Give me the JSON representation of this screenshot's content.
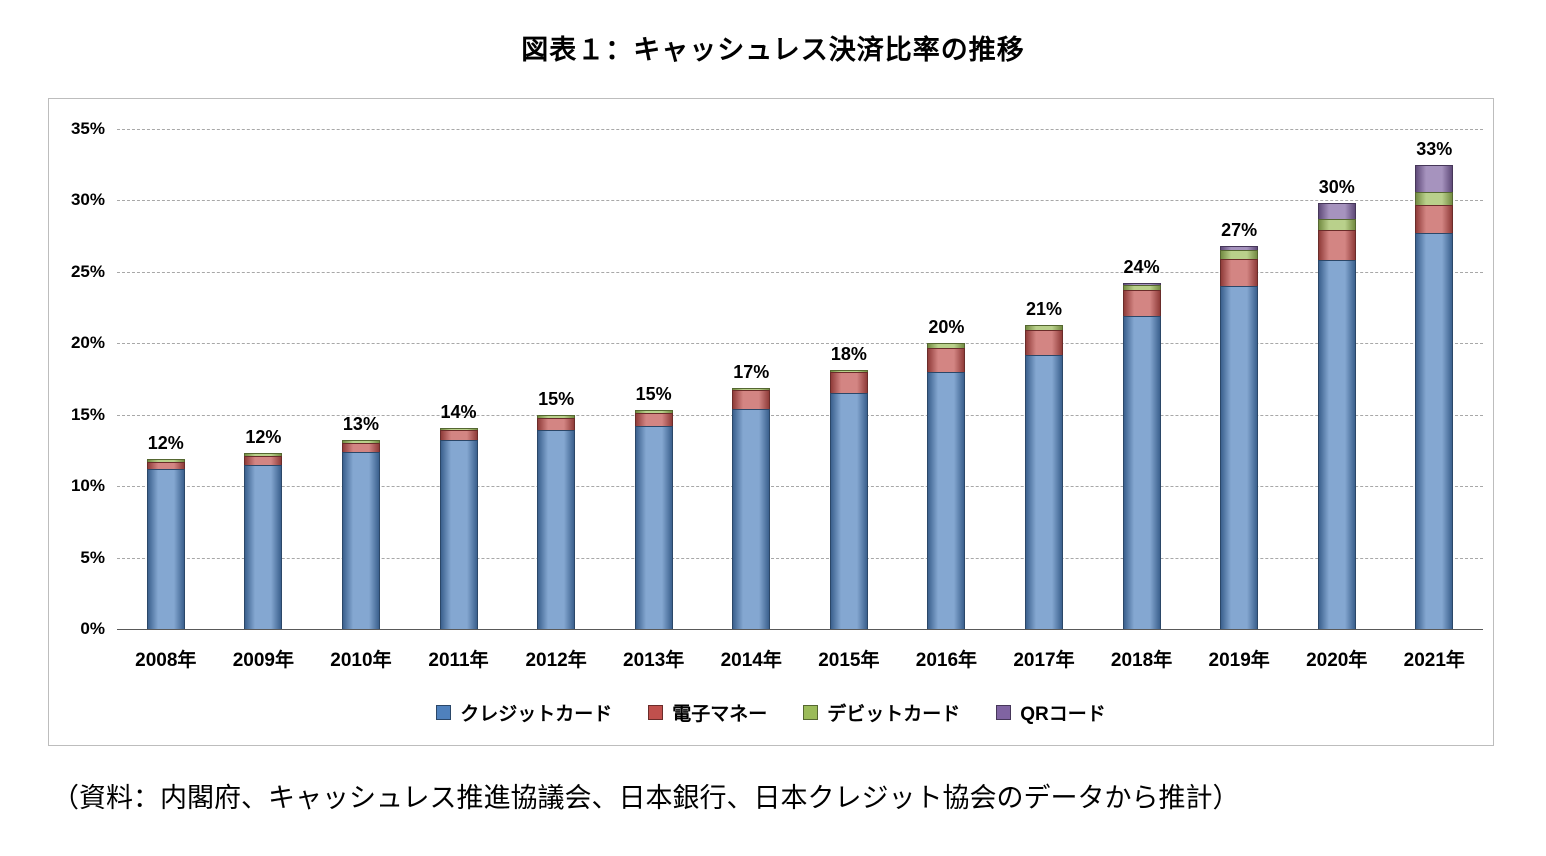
{
  "title": "図表１：キャッシュレス決済比率の推移",
  "caption": "（資料：内閣府、キャッシュレス推進協議会、日本銀行、日本クレジット協会のデータから推計）",
  "chart_data": {
    "type": "bar",
    "stacked": true,
    "title": "図表１：キャッシュレス決済比率の推移",
    "categories": [
      "2008年",
      "2009年",
      "2010年",
      "2011年",
      "2012年",
      "2013年",
      "2014年",
      "2015年",
      "2016年",
      "2017年",
      "2018年",
      "2019年",
      "2020年",
      "2021年"
    ],
    "series": [
      {
        "name": "クレジットカード",
        "color": "#4F81BD",
        "values": [
          11.2,
          11.5,
          12.4,
          13.2,
          13.9,
          14.2,
          15.4,
          16.5,
          18.0,
          19.2,
          21.9,
          24.0,
          25.8,
          27.7
        ]
      },
      {
        "name": "電子マネー",
        "color": "#C0504D",
        "values": [
          0.5,
          0.6,
          0.6,
          0.7,
          0.9,
          0.9,
          1.3,
          1.5,
          1.7,
          1.7,
          1.8,
          1.9,
          2.1,
          2.0
        ]
      },
      {
        "name": "デビットカード",
        "color": "#9BBB59",
        "values": [
          0.2,
          0.2,
          0.2,
          0.2,
          0.2,
          0.2,
          0.2,
          0.1,
          0.3,
          0.4,
          0.4,
          0.6,
          0.8,
          0.9
        ]
      },
      {
        "name": "QRコード",
        "color": "#8064A2",
        "values": [
          0,
          0,
          0,
          0,
          0,
          0,
          0,
          0,
          0,
          0,
          0.1,
          0.3,
          1.1,
          1.9
        ]
      }
    ],
    "total_labels": [
      "12%",
      "12%",
      "13%",
      "14%",
      "15%",
      "15%",
      "17%",
      "18%",
      "20%",
      "21%",
      "24%",
      "27%",
      "30%",
      "33%"
    ],
    "xlabel": "",
    "ylabel": "",
    "ylim": [
      0,
      35
    ],
    "ytick_step": 5,
    "ytick_labels": [
      "0%",
      "5%",
      "10%",
      "15%",
      "20%",
      "25%",
      "30%",
      "35%"
    ],
    "grid": "dashed horizontal",
    "legend_position": "bottom"
  },
  "legend": {
    "items": [
      {
        "label": "クレジットカード",
        "color": "#4F81BD"
      },
      {
        "label": "電子マネー",
        "color": "#C0504D"
      },
      {
        "label": "デビットカード",
        "color": "#9BBB59"
      },
      {
        "label": "QRコード",
        "color": "#8064A2"
      }
    ]
  }
}
